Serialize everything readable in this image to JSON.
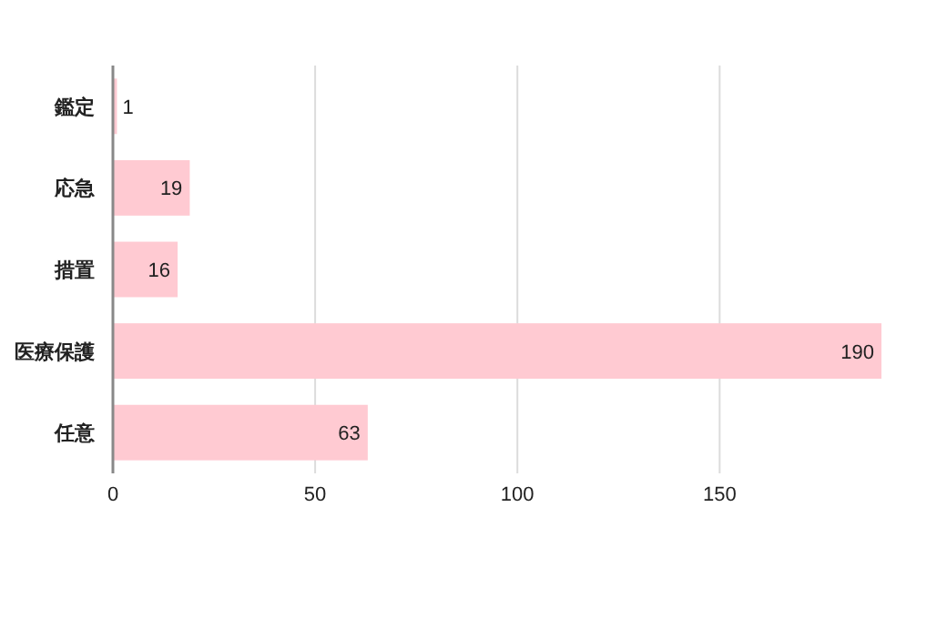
{
  "chart_data": {
    "type": "bar",
    "orientation": "horizontal",
    "categories": [
      "鑑定",
      "応急",
      "措置",
      "医療保護",
      "任意"
    ],
    "values": [
      1,
      19,
      16,
      190,
      63
    ],
    "color": "#ffcad2",
    "xlim": [
      0,
      190
    ],
    "xticks": [
      0,
      50,
      100,
      150
    ],
    "grid": "x",
    "data_labels": true
  }
}
